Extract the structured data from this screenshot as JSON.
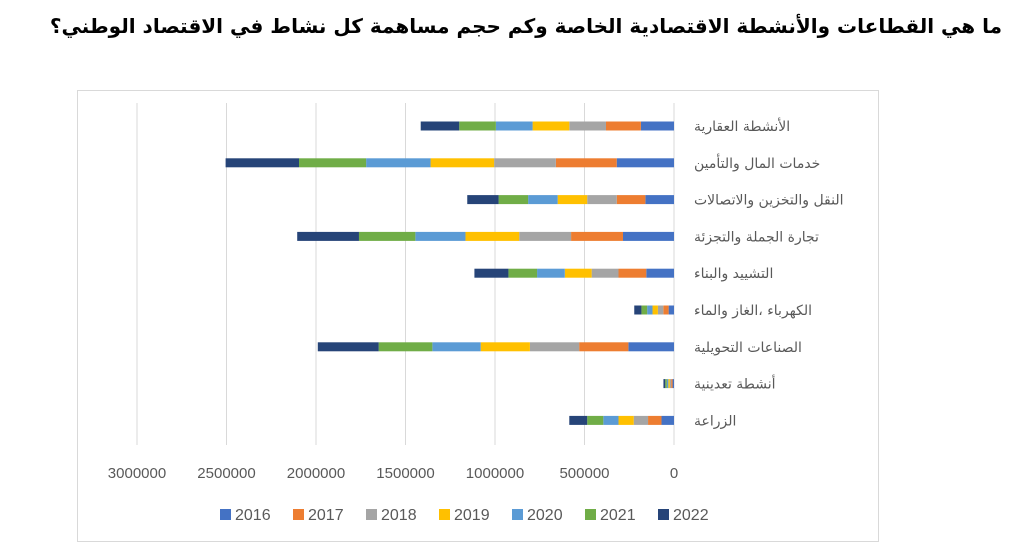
{
  "title": "ما هي القطاعات والأنشطة الاقتصادية الخاصة وكم حجم مساهمة كل نشاط في الاقتصاد الوطني؟",
  "chart_data": {
    "type": "bar",
    "orientation": "horizontal-stacked",
    "x_axis_reversed": true,
    "title": "ما هي القطاعات والأنشطة الاقتصادية الخاصة وكم حجم مساهمة كل نشاط في الاقتصاد الوطني؟",
    "categories": [
      "الأنشطة العقارية",
      "خدمات المال والتأمين",
      "النقل والتخزين والاتصالات",
      "تجارة الجملة والتجزئة",
      "التشييد والبناء",
      "الكهرباء ،الغاز والماء",
      "الصناعات التحويلية",
      "أنشطة تعدينية",
      "الزراعة"
    ],
    "xlim": [
      0,
      3000000
    ],
    "x_ticks": [
      "0",
      "500000",
      "1000000",
      "1500000",
      "2000000",
      "2500000",
      "3000000"
    ],
    "grid": true,
    "legend_position": "bottom",
    "series": [
      {
        "name": "2016",
        "color": "#4472c4",
        "values": [
          185000,
          320000,
          160000,
          285000,
          155000,
          30000,
          255000,
          8000,
          70000
        ]
      },
      {
        "name": "2017",
        "color": "#ed7d31",
        "values": [
          195000,
          340000,
          160000,
          290000,
          155000,
          30000,
          275000,
          8000,
          75000
        ]
      },
      {
        "name": "2018",
        "color": "#a5a5a5",
        "values": [
          205000,
          345000,
          165000,
          290000,
          150000,
          30000,
          275000,
          8000,
          80000
        ]
      },
      {
        "name": "2019",
        "color": "#ffc000",
        "values": [
          205000,
          355000,
          165000,
          300000,
          150000,
          30000,
          275000,
          8000,
          85000
        ]
      },
      {
        "name": "2020",
        "color": "#5b9bd5",
        "values": [
          205000,
          360000,
          165000,
          280000,
          155000,
          30000,
          270000,
          8000,
          85000
        ]
      },
      {
        "name": "2021",
        "color": "#70ad47",
        "values": [
          205000,
          375000,
          165000,
          315000,
          160000,
          32000,
          300000,
          9000,
          90000
        ]
      },
      {
        "name": "2022",
        "color": "#264478",
        "values": [
          215000,
          410000,
          175000,
          345000,
          190000,
          40000,
          340000,
          10000,
          100000
        ]
      }
    ]
  }
}
